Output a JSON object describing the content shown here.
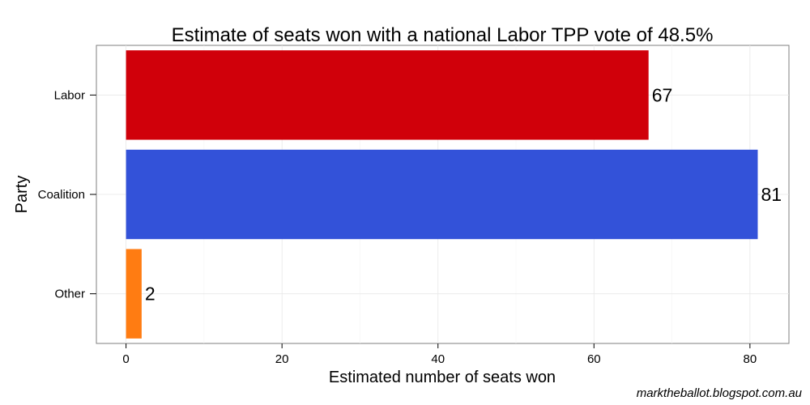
{
  "chart_data": {
    "type": "bar",
    "orientation": "horizontal",
    "title": "Estimate of seats won with a national Labor TPP vote of 48.5%",
    "xlabel": "Estimated number of seats won",
    "ylabel": "Party",
    "categories": [
      "Labor",
      "Coalition",
      "Other"
    ],
    "values": [
      67,
      81,
      2
    ],
    "value_labels": [
      "67",
      "81",
      "2"
    ],
    "colors": [
      "#d0000a",
      "#3352d9",
      "#ff7c12"
    ],
    "xlim": [
      -3.8,
      85
    ],
    "xticks": [
      0,
      20,
      40,
      60,
      80
    ],
    "xtick_labels": [
      "0",
      "20",
      "40",
      "60",
      "80"
    ],
    "grid": true,
    "legend": "none"
  },
  "credit": "marktheballot.blogspot.com.au"
}
